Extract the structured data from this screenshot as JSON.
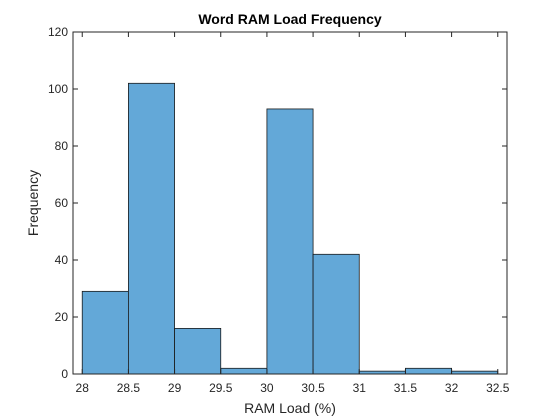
{
  "chart_data": {
    "type": "bar",
    "title": "Word RAM Load Frequency",
    "xlabel": "RAM Load (%)",
    "ylabel": "Frequency",
    "bin_edges": [
      28,
      28.5,
      29,
      29.5,
      30,
      30.5,
      31,
      31.5,
      32,
      32.5
    ],
    "values": [
      29,
      102,
      16,
      2,
      93,
      42,
      1,
      2,
      1
    ],
    "xlim": [
      27.9,
      32.6
    ],
    "ylim": [
      0,
      120
    ],
    "xticks": [
      28,
      28.5,
      29,
      29.5,
      30,
      30.5,
      31,
      31.5,
      32,
      32.5
    ],
    "xtick_labels": [
      "28",
      "28.5",
      "29",
      "29.5",
      "30",
      "30.5",
      "31",
      "31.5",
      "32",
      "32.5"
    ],
    "yticks": [
      0,
      20,
      40,
      60,
      80,
      100,
      120
    ],
    "ytick_labels": [
      "0",
      "20",
      "40",
      "60",
      "80",
      "100",
      "120"
    ],
    "grid": false,
    "colors": {
      "bar_fill": "#63a8d8",
      "bar_edge": "#1a1a1a",
      "axis": "#262626"
    }
  }
}
